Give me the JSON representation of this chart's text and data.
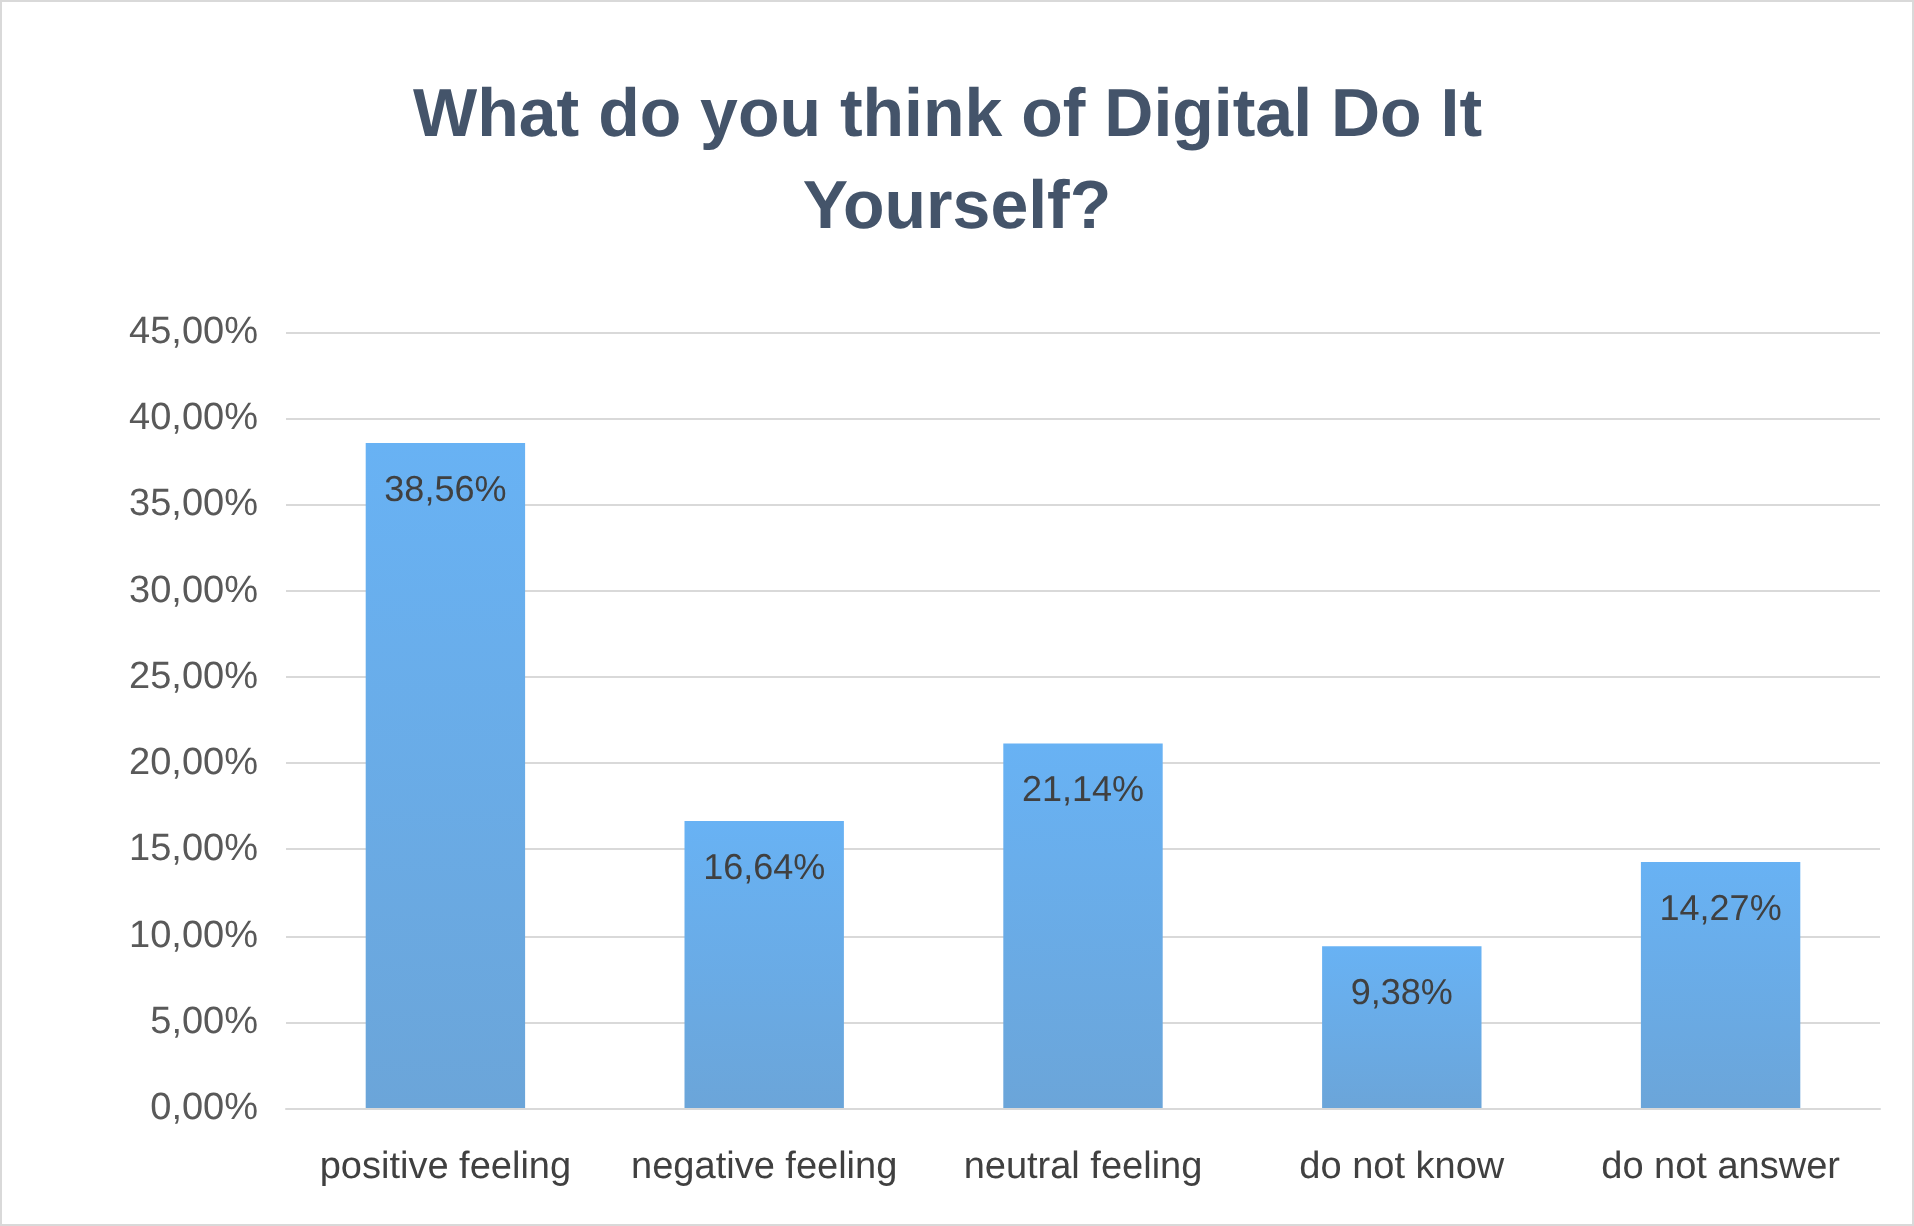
{
  "chart_data": {
    "type": "bar",
    "title": "What do you think of Digital Do It Yourself?",
    "categories": [
      "positive feeling",
      "negative feeling",
      "neutral feeling",
      "do not know",
      "do not answer"
    ],
    "values": [
      38.56,
      16.64,
      21.14,
      9.38,
      14.27
    ],
    "value_labels": [
      "38,56%",
      "16,64%",
      "21,14%",
      "9,38%",
      "14,27%"
    ],
    "color": "#5b9bd5",
    "ylim": [
      0,
      45
    ],
    "yticks": [
      {
        "value": 0,
        "label": "0,00%"
      },
      {
        "value": 5,
        "label": "5,00%"
      },
      {
        "value": 10,
        "label": "10,00%"
      },
      {
        "value": 15,
        "label": "15,00%"
      },
      {
        "value": 20,
        "label": "20,00%"
      },
      {
        "value": 25,
        "label": "25,00%"
      },
      {
        "value": 30,
        "label": "30,00%"
      },
      {
        "value": 35,
        "label": "35,00%"
      },
      {
        "value": 40,
        "label": "40,00%"
      },
      {
        "value": 45,
        "label": "45,00%"
      }
    ],
    "grid": "y"
  }
}
